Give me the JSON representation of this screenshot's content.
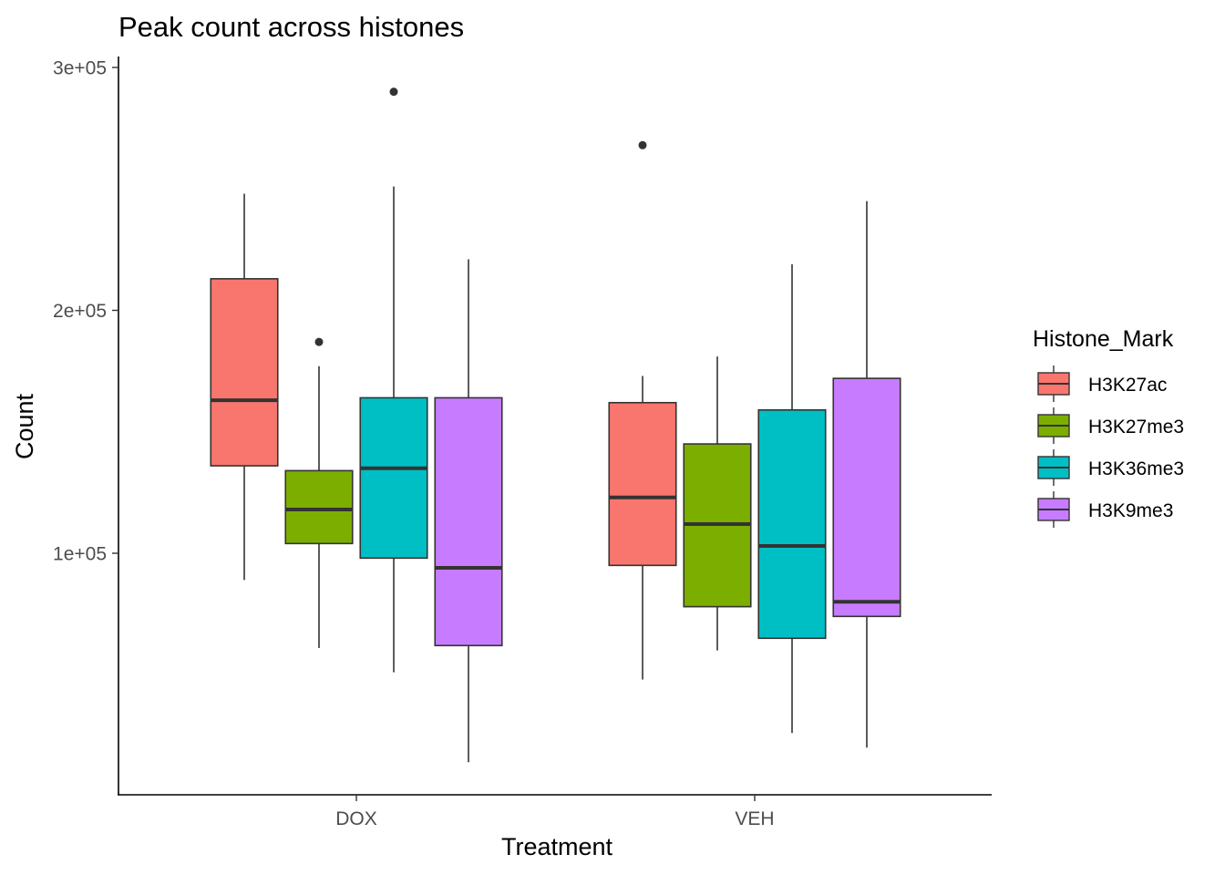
{
  "chart_data": {
    "type": "boxplot",
    "title": "Peak count across histones",
    "xlabel": "Treatment",
    "ylabel": "Count",
    "ylim": [
      0,
      300000
    ],
    "yticks": [
      100000,
      200000,
      300000
    ],
    "ytick_labels": [
      "1e+05",
      "2e+05",
      "3e+05"
    ],
    "categories": [
      "DOX",
      "VEH"
    ],
    "legend": {
      "title": "Histone_Mark",
      "position": "right"
    },
    "series": [
      {
        "name": "H3K27ac",
        "color": "#F8766D",
        "boxes": [
          {
            "min": 89000,
            "q1": 136000,
            "median": 163000,
            "q3": 213000,
            "max": 248000,
            "outliers": []
          },
          {
            "min": 48000,
            "q1": 95000,
            "median": 123000,
            "q3": 162000,
            "max": 173000,
            "outliers": [
              268000
            ]
          }
        ]
      },
      {
        "name": "H3K27me3",
        "color": "#7CAE00",
        "boxes": [
          {
            "min": 61000,
            "q1": 104000,
            "median": 118000,
            "q3": 134000,
            "max": 177000,
            "outliers": [
              187000
            ]
          },
          {
            "min": 60000,
            "q1": 78000,
            "median": 112000,
            "q3": 145000,
            "max": 181000,
            "outliers": []
          }
        ]
      },
      {
        "name": "H3K36me3",
        "color": "#00BFC4",
        "boxes": [
          {
            "min": 51000,
            "q1": 98000,
            "median": 135000,
            "q3": 164000,
            "max": 251000,
            "outliers": [
              290000
            ]
          },
          {
            "min": 26000,
            "q1": 65000,
            "median": 103000,
            "q3": 159000,
            "max": 219000,
            "outliers": []
          }
        ]
      },
      {
        "name": "H3K9me3",
        "color": "#C77CFF",
        "boxes": [
          {
            "min": 14000,
            "q1": 62000,
            "median": 94000,
            "q3": 164000,
            "max": 221000,
            "outliers": []
          },
          {
            "min": 20000,
            "q1": 74000,
            "median": 80000,
            "q3": 172000,
            "max": 245000,
            "outliers": []
          }
        ]
      }
    ]
  }
}
